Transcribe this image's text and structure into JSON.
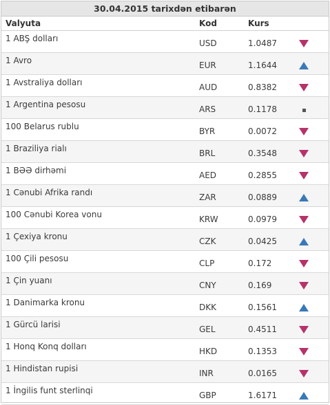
{
  "title": "30.04.2015 tarixdən etibarən",
  "headers": {
    "currency": "Valyuta",
    "code": "Kod",
    "rate": "Kurs"
  },
  "rows": [
    {
      "name": "1 ABŞ dolları",
      "code": "USD",
      "rate": "1.0487",
      "trend": "down"
    },
    {
      "name": "1 Avro",
      "code": "EUR",
      "rate": "1.1644",
      "trend": "up"
    },
    {
      "name": "1 Avstraliya dolları",
      "code": "AUD",
      "rate": "0.8382",
      "trend": "down"
    },
    {
      "name": "1 Argentina pesosu",
      "code": "ARS",
      "rate": "0.1178",
      "trend": "same"
    },
    {
      "name": "100 Belarus rublu",
      "code": "BYR",
      "rate": "0.0072",
      "trend": "down"
    },
    {
      "name": "1 Braziliya rialı",
      "code": "BRL",
      "rate": "0.3548",
      "trend": "down"
    },
    {
      "name": "1 BƏƏ dirhəmi",
      "code": "AED",
      "rate": "0.2855",
      "trend": "down"
    },
    {
      "name": "1 Cənubi Afrika randı",
      "code": "ZAR",
      "rate": "0.0889",
      "trend": "up"
    },
    {
      "name": "100 Cənubi Korea vonu",
      "code": "KRW",
      "rate": "0.0979",
      "trend": "down"
    },
    {
      "name": "1 Çexiya kronu",
      "code": "CZK",
      "rate": "0.0425",
      "trend": "up"
    },
    {
      "name": "100 Çili pesosu",
      "code": "CLP",
      "rate": "0.172",
      "trend": "down"
    },
    {
      "name": "1 Çin yuanı",
      "code": "CNY",
      "rate": "0.169",
      "trend": "down"
    },
    {
      "name": "1 Danimarka kronu",
      "code": "DKK",
      "rate": "0.1561",
      "trend": "up"
    },
    {
      "name": "1 Gürcü larisi",
      "code": "GEL",
      "rate": "0.4511",
      "trend": "down"
    },
    {
      "name": "1 Honq Konq dolları",
      "code": "HKD",
      "rate": "0.1353",
      "trend": "down"
    },
    {
      "name": "1 Hindistan rupisi",
      "code": "INR",
      "rate": "0.0165",
      "trend": "down"
    },
    {
      "name": "1 İngilis funt sterlinqi",
      "code": "GBP",
      "rate": "1.6171",
      "trend": "up"
    }
  ],
  "colors": {
    "down": "#b5336a",
    "up": "#3a79b8",
    "same": "#555555"
  }
}
